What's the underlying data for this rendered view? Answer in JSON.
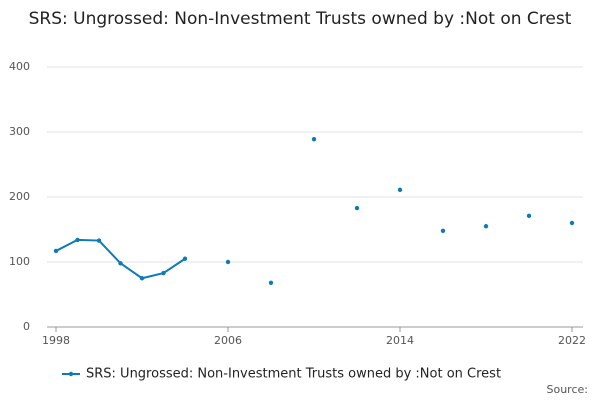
{
  "chart_data": {
    "type": "line",
    "title": "SRS: Ungrossed: Non-Investment Trusts owned by :Not on Crest",
    "source": "Source:",
    "x": [
      1998,
      1999,
      2000,
      2001,
      2002,
      2003,
      2004,
      2005,
      2006,
      2007,
      2008,
      2009,
      2010,
      2011,
      2012,
      2013,
      2014,
      2015,
      2016,
      2017,
      2018,
      2019,
      2020,
      2021,
      2022
    ],
    "series": [
      {
        "name": "SRS: Ungrossed: Non-Investment Trusts owned by :Not on Crest",
        "color": "#0e7bb6",
        "values": [
          117,
          134,
          133,
          98,
          75,
          83,
          105,
          null,
          100,
          null,
          68,
          null,
          289,
          null,
          183,
          null,
          211,
          null,
          148,
          null,
          155,
          null,
          171,
          null,
          160
        ]
      }
    ],
    "xlim": [
      1998,
      2022
    ],
    "xticks": [
      1998,
      2006,
      2014,
      2022
    ],
    "ylim": [
      0,
      400
    ],
    "yticks": [
      0,
      100,
      200,
      300,
      400
    ],
    "grid": true
  }
}
